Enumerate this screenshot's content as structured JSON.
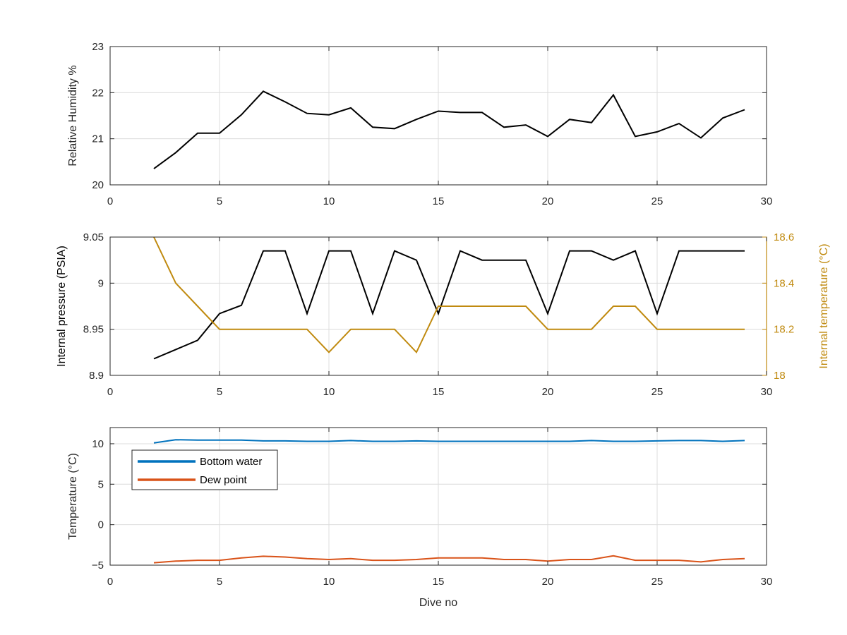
{
  "colors": {
    "black": "#000000",
    "temp_gold": "#C08A0F",
    "bottom_water": "#0072BD",
    "dew_point": "#D95319",
    "axis": "#262626",
    "grid": "#dcdcdc"
  },
  "chart_data": [
    {
      "type": "line",
      "xlabel": "",
      "ylabel": "Relative Humidity %",
      "xlim": [
        0,
        30
      ],
      "ylim": [
        20,
        23
      ],
      "xticks": [
        0,
        5,
        10,
        15,
        20,
        25,
        30
      ],
      "yticks": [
        20,
        21,
        22,
        23
      ],
      "grid": true,
      "series": [
        {
          "color": "#000000",
          "x": [
            2,
            3,
            4,
            5,
            6,
            7,
            8,
            9,
            10,
            11,
            12,
            13,
            14,
            15,
            16,
            17,
            18,
            19,
            20,
            21,
            22,
            23,
            24,
            25,
            26,
            27,
            28,
            29
          ],
          "y": [
            20.35,
            20.7,
            21.12,
            21.12,
            21.52,
            22.03,
            21.8,
            21.55,
            21.52,
            21.67,
            21.25,
            21.22,
            21.42,
            21.6,
            21.57,
            21.57,
            21.25,
            21.3,
            21.05,
            21.42,
            21.35,
            21.95,
            21.05,
            21.15,
            21.33,
            21.02,
            21.45,
            21.63
          ]
        }
      ]
    },
    {
      "type": "line",
      "xlabel": "",
      "ylabel": "Internal pressure (PSIA)",
      "ylabel_right": "Internal temperature (°C)",
      "xlim": [
        0,
        30
      ],
      "ylim": [
        8.9,
        9.05
      ],
      "ylim_right": [
        18,
        18.6
      ],
      "xticks": [
        0,
        5,
        10,
        15,
        20,
        25,
        30
      ],
      "yticks": [
        8.9,
        8.95,
        9,
        9.05
      ],
      "yticks_labels": [
        "8.9",
        "8.95",
        "9",
        "9.05"
      ],
      "yticks_right": [
        18,
        18.2,
        18.4,
        18.6
      ],
      "yticks_right_labels": [
        "18",
        "18.2",
        "18.4",
        "18.6"
      ],
      "grid": true,
      "series": [
        {
          "axis": "left",
          "color": "#000000",
          "x": [
            2,
            3,
            4,
            5,
            6,
            7,
            8,
            9,
            10,
            11,
            12,
            13,
            14,
            15,
            16,
            17,
            18,
            19,
            20,
            21,
            22,
            23,
            24,
            25,
            26,
            27,
            28,
            29
          ],
          "y": [
            8.918,
            8.928,
            8.938,
            8.967,
            8.976,
            9.035,
            9.035,
            8.967,
            9.035,
            9.035,
            8.967,
            9.035,
            9.025,
            8.967,
            9.035,
            9.025,
            9.025,
            9.025,
            8.967,
            9.035,
            9.035,
            9.025,
            9.035,
            8.967,
            9.035,
            9.035,
            9.035,
            9.035
          ]
        },
        {
          "axis": "right",
          "color": "#C08A0F",
          "x": [
            2,
            3,
            4,
            5,
            6,
            7,
            8,
            9,
            10,
            11,
            12,
            13,
            14,
            15,
            16,
            17,
            18,
            19,
            20,
            21,
            22,
            23,
            24,
            25,
            26,
            27,
            28,
            29
          ],
          "y": [
            18.6,
            18.4,
            18.3,
            18.2,
            18.2,
            18.2,
            18.2,
            18.2,
            18.1,
            18.2,
            18.2,
            18.2,
            18.1,
            18.3,
            18.3,
            18.3,
            18.3,
            18.3,
            18.2,
            18.2,
            18.2,
            18.3,
            18.3,
            18.2,
            18.2,
            18.2,
            18.2,
            18.2
          ]
        }
      ]
    },
    {
      "type": "line",
      "xlabel": "Dive no",
      "ylabel": "Temperature (°C)",
      "xlim": [
        0,
        30
      ],
      "ylim": [
        -5,
        12
      ],
      "xticks": [
        0,
        5,
        10,
        15,
        20,
        25,
        30
      ],
      "yticks": [
        -5,
        0,
        5,
        10
      ],
      "grid": true,
      "legend_location": "upper-left",
      "series": [
        {
          "name": "Bottom water",
          "color": "#0072BD",
          "x": [
            2,
            3,
            4,
            5,
            6,
            7,
            8,
            9,
            10,
            11,
            12,
            13,
            14,
            15,
            16,
            17,
            18,
            19,
            20,
            21,
            22,
            23,
            24,
            25,
            26,
            27,
            28,
            29
          ],
          "y": [
            10.1,
            10.5,
            10.45,
            10.45,
            10.45,
            10.35,
            10.35,
            10.3,
            10.3,
            10.4,
            10.3,
            10.3,
            10.35,
            10.3,
            10.3,
            10.3,
            10.3,
            10.3,
            10.3,
            10.3,
            10.4,
            10.3,
            10.3,
            10.35,
            10.4,
            10.4,
            10.3,
            10.4
          ]
        },
        {
          "name": "Dew point",
          "color": "#D95319",
          "x": [
            2,
            3,
            4,
            5,
            6,
            7,
            8,
            9,
            10,
            11,
            12,
            13,
            14,
            15,
            16,
            17,
            18,
            19,
            20,
            21,
            22,
            23,
            24,
            25,
            26,
            27,
            28,
            29
          ],
          "y": [
            -4.7,
            -4.5,
            -4.4,
            -4.4,
            -4.1,
            -3.9,
            -4.0,
            -4.2,
            -4.3,
            -4.2,
            -4.4,
            -4.4,
            -4.3,
            -4.1,
            -4.1,
            -4.1,
            -4.3,
            -4.3,
            -4.5,
            -4.3,
            -4.3,
            -3.85,
            -4.4,
            -4.4,
            -4.4,
            -4.6,
            -4.3,
            -4.2
          ]
        }
      ]
    }
  ]
}
